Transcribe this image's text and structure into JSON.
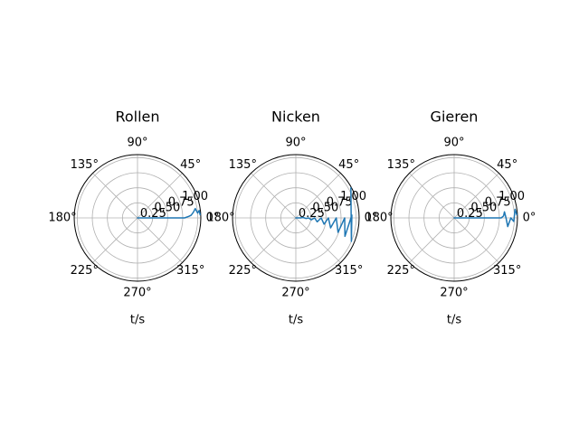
{
  "chart_data": [
    {
      "type": "line",
      "projection": "polar",
      "title": "Rollen",
      "xlabel": "t/s",
      "theta_ticks": [
        "0°",
        "45°",
        "90°",
        "135°",
        "180°",
        "225°",
        "270°",
        "315°"
      ],
      "r_ticks": [
        "0.25",
        "0.50",
        "0.75",
        "1.00"
      ],
      "rlim": [
        0,
        1.05
      ],
      "grid": true,
      "color": "#1f77b4",
      "series": [
        {
          "points": [
            {
              "t": 0.0,
              "r": 0.0
            },
            {
              "t": 0.0,
              "r": 0.5
            },
            {
              "t": 0.0,
              "r": 0.78
            },
            {
              "t": 0.03,
              "r": 0.85
            },
            {
              "t": 0.05,
              "r": 0.89
            },
            {
              "t": 0.1,
              "r": 0.93
            },
            {
              "t": 0.16,
              "r": 0.97
            },
            {
              "t": 0.08,
              "r": 1.0
            },
            {
              "t": 0.12,
              "r": 1.03
            },
            {
              "t": 0.05,
              "r": 1.04
            }
          ]
        }
      ]
    },
    {
      "type": "line",
      "projection": "polar",
      "title": "Nicken",
      "xlabel": "t/s",
      "theta_ticks": [
        "0°",
        "45°",
        "90°",
        "135°",
        "180°",
        "225°",
        "270°",
        "315°"
      ],
      "r_ticks": [
        "0.25",
        "0.50",
        "0.75",
        "1.00"
      ],
      "rlim": [
        0,
        1.05
      ],
      "grid": true,
      "color": "#1f77b4",
      "series": [
        {
          "points": [
            {
              "t": 0.0,
              "r": 0.0
            },
            {
              "t": 0.0,
              "r": 0.08
            },
            {
              "t": 0.06,
              "r": 0.12
            },
            {
              "t": -0.06,
              "r": 0.17
            },
            {
              "t": 0.0,
              "r": 0.21
            },
            {
              "t": -0.12,
              "r": 0.26
            },
            {
              "t": 0.0,
              "r": 0.31
            },
            {
              "t": -0.18,
              "r": 0.36
            },
            {
              "t": 0.0,
              "r": 0.42
            },
            {
              "t": -0.22,
              "r": 0.48
            },
            {
              "t": 0.0,
              "r": 0.54
            },
            {
              "t": -0.28,
              "r": 0.6
            },
            {
              "t": 0.0,
              "r": 0.67
            },
            {
              "t": -0.33,
              "r": 0.74
            },
            {
              "t": 0.0,
              "r": 0.81
            },
            {
              "t": -0.36,
              "r": 0.87
            },
            {
              "t": 0.05,
              "r": 0.93
            },
            {
              "t": -0.4,
              "r": 1.0
            },
            {
              "t": 0.5,
              "r": 1.04
            }
          ]
        }
      ]
    },
    {
      "type": "line",
      "projection": "polar",
      "title": "Gieren",
      "xlabel": "t/s",
      "theta_ticks": [
        "0°",
        "45°",
        "90°",
        "135°",
        "180°",
        "225°",
        "270°",
        "315°"
      ],
      "r_ticks": [
        "0.25",
        "0.50",
        "0.75",
        "1.00"
      ],
      "rlim": [
        0,
        1.05
      ],
      "grid": true,
      "color": "#1f77b4",
      "series": [
        {
          "points": [
            {
              "t": 0.0,
              "r": 0.0
            },
            {
              "t": 0.0,
              "r": 0.5
            },
            {
              "t": 0.0,
              "r": 0.78
            },
            {
              "t": 0.04,
              "r": 0.82
            },
            {
              "t": 0.12,
              "r": 0.84
            },
            {
              "t": 0.0,
              "r": 0.86
            },
            {
              "t": -0.16,
              "r": 0.9
            },
            {
              "t": 0.0,
              "r": 0.94
            },
            {
              "t": -0.06,
              "r": 0.99
            },
            {
              "t": 0.14,
              "r": 1.02
            },
            {
              "t": 0.05,
              "r": 1.04
            }
          ]
        }
      ]
    }
  ]
}
